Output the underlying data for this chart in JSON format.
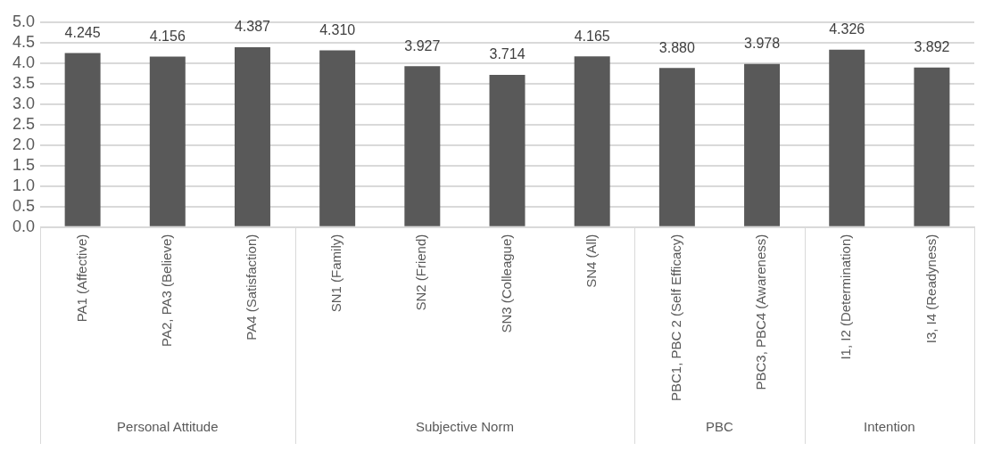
{
  "chart_data": {
    "type": "bar",
    "categories": [
      "PA1 (Affective)",
      "PA2, PA3 (Believe)",
      "PA4 (Satisfaction)",
      "SN1 (Family)",
      "SN2 (Friend)",
      "SN3 (Colleague)",
      "SN4 (All)",
      "PBC1, PBC 2 (Self Efficacy)",
      "PBC3, PBC4 (Awareness)",
      "I1, I2 (Determination)",
      "I3, I4 (Readyness)"
    ],
    "values": [
      4.245,
      4.156,
      4.387,
      4.31,
      3.927,
      3.714,
      4.165,
      3.88,
      3.978,
      4.326,
      3.892
    ],
    "color": "#595959",
    "ylim": [
      0,
      5
    ],
    "yticks": [
      {
        "value": 0,
        "label": "0.0"
      },
      {
        "value": 0.5,
        "label": "0.5"
      },
      {
        "value": 1,
        "label": "1.0"
      },
      {
        "value": 1.5,
        "label": "1.5"
      },
      {
        "value": 2,
        "label": "2.0"
      },
      {
        "value": 2.5,
        "label": "2.5"
      },
      {
        "value": 3,
        "label": "3.0"
      },
      {
        "value": 3.5,
        "label": "3.5"
      },
      {
        "value": 4,
        "label": "4.0"
      },
      {
        "value": 4.5,
        "label": "4.5"
      },
      {
        "value": 5,
        "label": "5.0"
      }
    ],
    "grid": "y",
    "data_labels": true,
    "value_labels": [
      "4.245",
      "4.156",
      "4.387",
      "4.310",
      "3.927",
      "3.714",
      "4.165",
      "3.880",
      "3.978",
      "4.326",
      "3.892"
    ],
    "annotations": [
      "Personal Attitude",
      "Subjective Norm",
      "PBC",
      "Intention"
    ],
    "legend": false
  }
}
